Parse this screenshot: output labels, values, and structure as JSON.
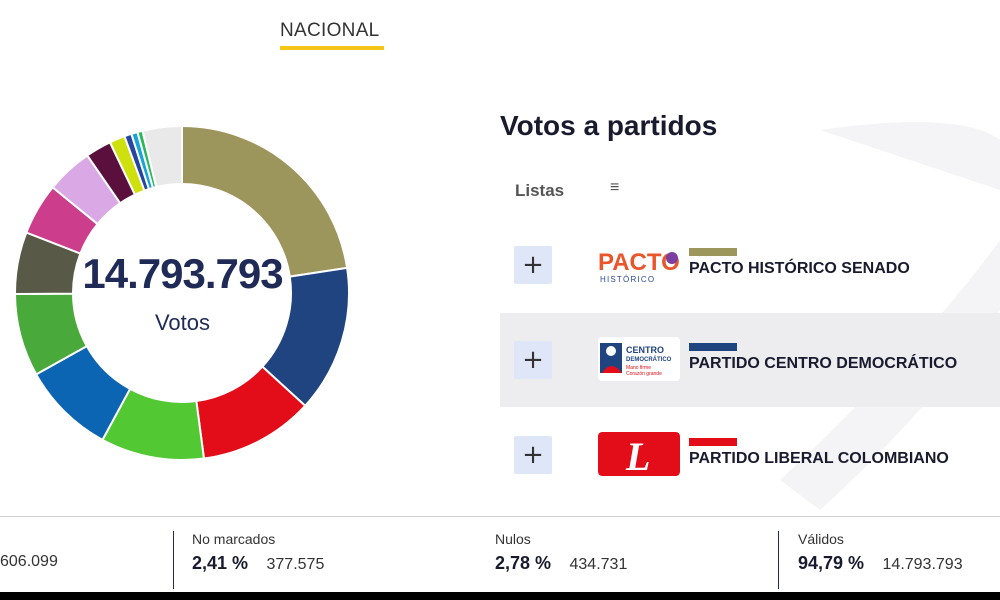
{
  "tabs": {
    "active": "NACIONAL"
  },
  "total": {
    "value": "14.793.793",
    "label": "Votos"
  },
  "chart_data": {
    "type": "pie",
    "slices": [
      {
        "value": 22.6,
        "color": "#9c955c"
      },
      {
        "value": 14.2,
        "color": "#1f4480"
      },
      {
        "value": 11.1,
        "color": "#e30d19"
      },
      {
        "value": 10.0,
        "color": "#52c833"
      },
      {
        "value": 9.0,
        "color": "#0b65b3"
      },
      {
        "value": 8.0,
        "color": "#4aa93b"
      },
      {
        "value": 6.0,
        "color": "#585a47"
      },
      {
        "value": 5.0,
        "color": "#cc3d8c"
      },
      {
        "value": 4.5,
        "color": "#dba8e6"
      },
      {
        "value": 2.5,
        "color": "#5a0f3c"
      },
      {
        "value": 1.5,
        "color": "#cfe00f"
      },
      {
        "value": 0.7,
        "color": "#2547a3"
      },
      {
        "value": 0.6,
        "color": "#17a5d8"
      },
      {
        "value": 0.5,
        "color": "#29b85a"
      },
      {
        "value": 3.8,
        "color": "#e9e9e9"
      }
    ]
  },
  "section": {
    "title": "Votos a partidos",
    "lists_label": "Listas",
    "menu_icon": "≡"
  },
  "parties": [
    {
      "name": "PACTO HISTÓRICO SENADO",
      "color": "#9c955c",
      "expand": "+",
      "logo_text": "PACTO",
      "logo_sub": "HISTÓRICO"
    },
    {
      "name": "PARTIDO CENTRO DEMOCRÁTICO",
      "color": "#1f4480",
      "expand": "+",
      "logo_text": "CENTRO",
      "logo_sub": "DEMOCRÁTICO",
      "logo_sub2": "Mano firme",
      "logo_sub3": "Corazón grande"
    },
    {
      "name": "PARTIDO LIBERAL COLOMBIANO",
      "color": "#e30d19",
      "expand": "+",
      "logo_text": "L"
    }
  ],
  "stats": [
    {
      "label": "",
      "pct": "",
      "value": "606.099"
    },
    {
      "label": "No marcados",
      "pct": "2,41 %",
      "value": "377.575"
    },
    {
      "label": "Nulos",
      "pct": "2,78 %",
      "value": "434.731"
    },
    {
      "label": "Válidos",
      "pct": "94,79 %",
      "value": "14.793.793"
    }
  ]
}
